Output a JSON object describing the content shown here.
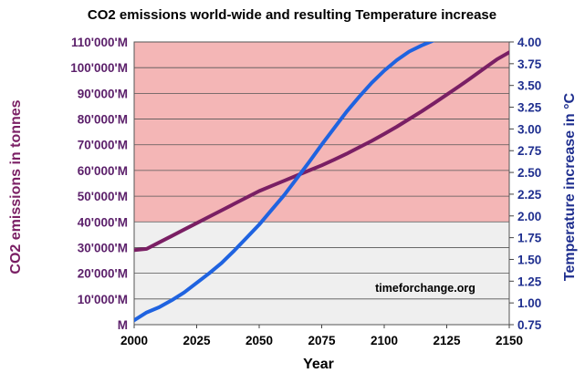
{
  "chart_data": {
    "type": "line",
    "title": "CO2 emissions world-wide and resulting Temperature increase",
    "xlabel": "Year",
    "ylabel_left": "CO2 emissions in tonnes",
    "ylabel_right": "Temperature increase in °C",
    "watermark": "timeforchange.org",
    "xlim": [
      2000,
      2150
    ],
    "ylim_left": [
      0,
      110000
    ],
    "ylim_right": [
      0.75,
      4.0
    ],
    "x_ticks": [
      "2000",
      "2025",
      "2050",
      "2075",
      "2100",
      "2125",
      "2150"
    ],
    "y_left_ticks": [
      "M",
      "10'000'M",
      "20'000'M",
      "30'000'M",
      "40'000'M",
      "50'000'M",
      "60'000'M",
      "70'000'M",
      "80'000'M",
      "90'000'M",
      "100'000'M",
      "110'000'M"
    ],
    "y_right_ticks": [
      "0.75",
      "1.00",
      "1.25",
      "1.50",
      "1.75",
      "2.00",
      "2.25",
      "2.50",
      "2.75",
      "3.00",
      "3.25",
      "3.50",
      "3.75",
      "4.00"
    ],
    "grid": true,
    "danger_zone_from": 40000,
    "colors": {
      "danger_zone": "#f4b6b6",
      "safe_zone": "#efefef",
      "co2_line": "#7a1f64",
      "temperature_line": "#1f63e0",
      "left_axis": "#5b1f6a",
      "right_axis": "#1f2f8f"
    },
    "series": [
      {
        "axis": "left",
        "x": [
          2000,
          2005,
          2010,
          2015,
          2020,
          2025,
          2030,
          2035,
          2040,
          2045,
          2050,
          2055,
          2060,
          2065,
          2070,
          2075,
          2080,
          2085,
          2090,
          2095,
          2100,
          2105,
          2110,
          2115,
          2120,
          2125,
          2130,
          2135,
          2140,
          2145,
          2150
        ],
        "values": [
          29000,
          29500,
          32000,
          34500,
          37000,
          39500,
          42000,
          44500,
          47000,
          49500,
          52000,
          54000,
          56000,
          58000,
          60000,
          62000,
          64200,
          66500,
          69000,
          71500,
          74200,
          77000,
          80000,
          83000,
          86200,
          89500,
          92800,
          96200,
          99700,
          103200,
          106000
        ]
      },
      {
        "axis": "right",
        "x": [
          2000,
          2005,
          2010,
          2015,
          2020,
          2025,
          2030,
          2035,
          2040,
          2045,
          2050,
          2055,
          2060,
          2065,
          2070,
          2075,
          2080,
          2085,
          2090,
          2095,
          2100,
          2105,
          2110,
          2115,
          2120
        ],
        "values": [
          0.8,
          0.89,
          0.95,
          1.03,
          1.12,
          1.23,
          1.34,
          1.46,
          1.6,
          1.75,
          1.9,
          2.07,
          2.24,
          2.43,
          2.62,
          2.82,
          3.01,
          3.2,
          3.37,
          3.53,
          3.67,
          3.79,
          3.89,
          3.96,
          4.02
        ]
      }
    ]
  }
}
